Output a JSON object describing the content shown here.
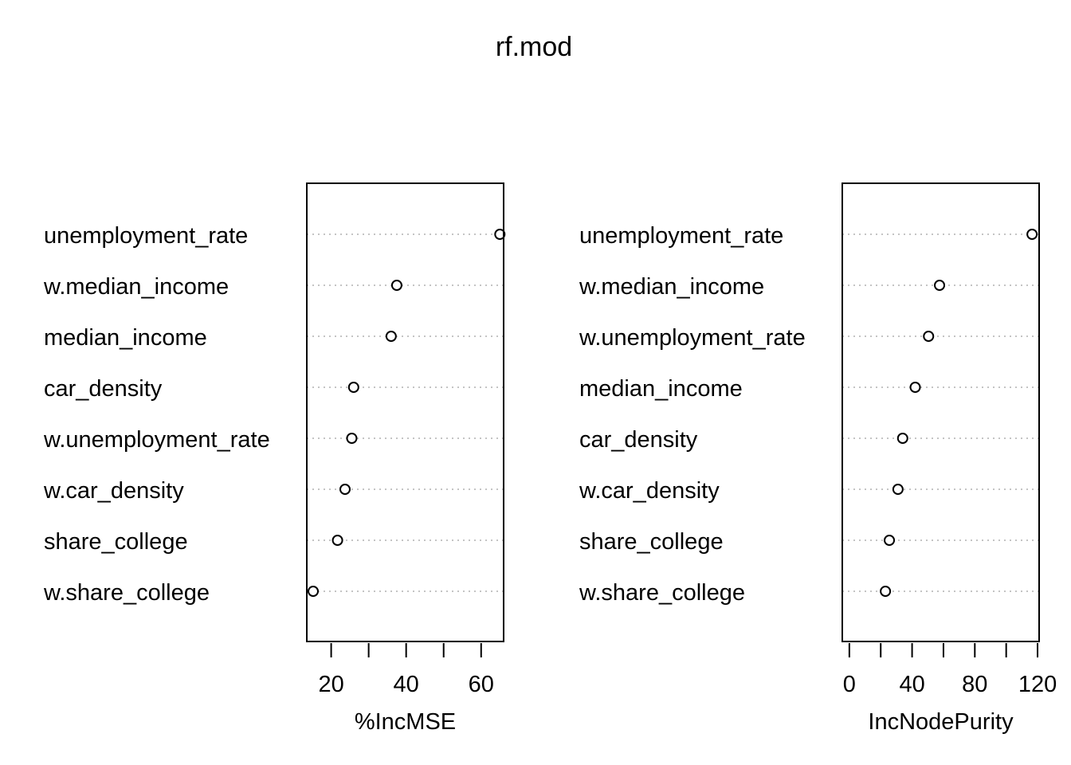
{
  "title": "rf.mod",
  "chart_data": [
    {
      "type": "scatter",
      "xlabel": "%IncMSE",
      "ylabel": "",
      "xlim": [
        13.5,
        66
      ],
      "xticks": [
        20,
        30,
        40,
        50,
        60
      ],
      "xtick_labels": [
        "20",
        "",
        "40",
        "",
        "60"
      ],
      "grid": "dotted horizontal guides",
      "categories": [
        "unemployment_rate",
        "w.median_income",
        "median_income",
        "car_density",
        "w.unemployment_rate",
        "w.car_density",
        "share_college",
        "w.share_college"
      ],
      "values": [
        65,
        37.5,
        36,
        26,
        25.5,
        23.7,
        21.7,
        15.2
      ]
    },
    {
      "type": "scatter",
      "xlabel": "IncNodePurity",
      "ylabel": "",
      "xlim": [
        -4.5,
        121
      ],
      "xticks": [
        0,
        20,
        40,
        60,
        80,
        100,
        120
      ],
      "xtick_labels": [
        "0",
        "",
        "40",
        "",
        "80",
        "",
        "120"
      ],
      "grid": "dotted horizontal guides",
      "categories": [
        "unemployment_rate",
        "w.median_income",
        "w.unemployment_rate",
        "median_income",
        "car_density",
        "w.car_density",
        "share_college",
        "w.share_college"
      ],
      "values": [
        116.5,
        57.5,
        50.5,
        42,
        34,
        31,
        25.5,
        23
      ]
    }
  ]
}
